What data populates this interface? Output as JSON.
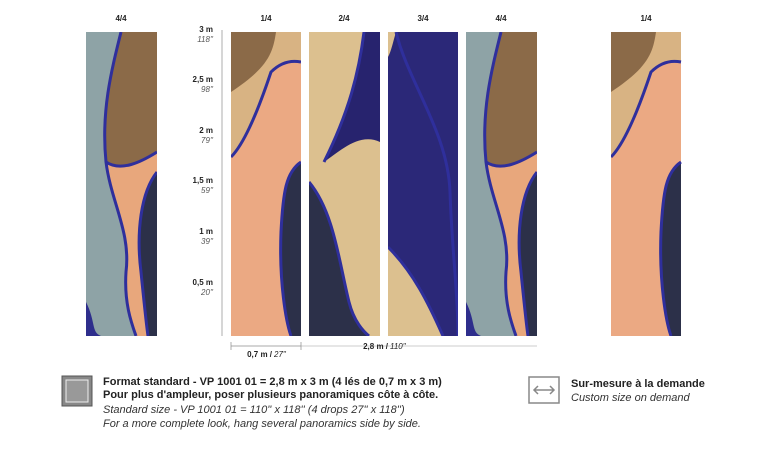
{
  "panel_labels": [
    "4/4",
    "1/4",
    "2/4",
    "3/4",
    "4/4",
    "1/4"
  ],
  "height_scale": [
    {
      "metric": "3 m",
      "imperial": "118''"
    },
    {
      "metric": "2,5 m",
      "imperial": "98''"
    },
    {
      "metric": "2 m",
      "imperial": "79''"
    },
    {
      "metric": "1,5 m",
      "imperial": "59''"
    },
    {
      "metric": "1 m",
      "imperial": "39''"
    },
    {
      "metric": "0,5 m",
      "imperial": "20''"
    }
  ],
  "width_scale": {
    "drop_metric": "0,7 m /",
    "drop_imperial": "27''",
    "total_metric": "2,8 m /",
    "total_imperial": "110''"
  },
  "standard": {
    "line_1": "Format standard - VP 1001 01 = 2,8 m x 3 m (4 lés de 0,7 m x 3 m)",
    "line_2": "Pour plus d'ampleur, poser plusieurs panoramiques côte à côte.",
    "line_3": "Standard size - VP 1001 01 = 110'' x 118'' (4 drops 27'' x 118'')",
    "line_4": "For a more complete look, hang several panoramics side by side."
  },
  "custom": {
    "line_1": "Sur-mesure à la demande",
    "line_2": "Custom size on demand"
  }
}
